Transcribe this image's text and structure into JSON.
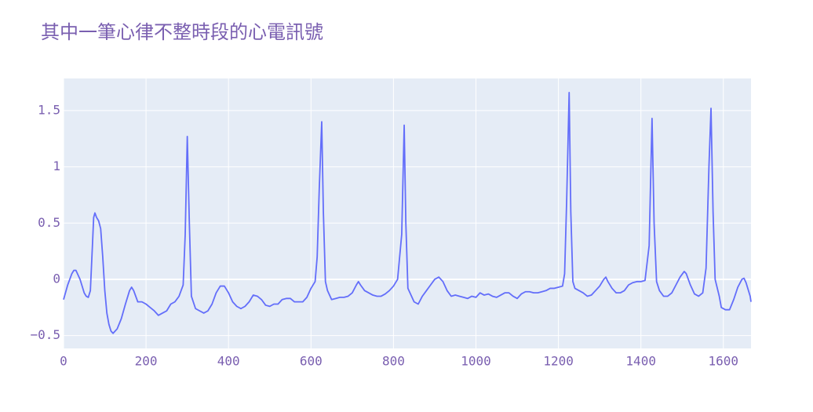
{
  "chart_data": {
    "type": "line",
    "title": "其中一筆心律不整時段的心電訊號",
    "x": [
      0,
      10,
      20,
      25,
      30,
      40,
      50,
      55,
      60,
      65,
      70,
      73,
      76,
      80,
      85,
      90,
      95,
      100,
      105,
      110,
      115,
      120,
      130,
      140,
      150,
      160,
      165,
      170,
      180,
      190,
      200,
      210,
      220,
      230,
      240,
      250,
      260,
      270,
      280,
      290,
      295,
      300,
      305,
      310,
      320,
      330,
      340,
      350,
      360,
      370,
      380,
      390,
      400,
      410,
      420,
      430,
      440,
      450,
      460,
      470,
      480,
      490,
      500,
      510,
      520,
      530,
      540,
      550,
      560,
      570,
      580,
      590,
      600,
      610,
      615,
      620,
      626,
      630,
      635,
      640,
      650,
      660,
      670,
      680,
      690,
      700,
      710,
      715,
      720,
      730,
      740,
      750,
      760,
      770,
      780,
      790,
      800,
      810,
      820,
      826,
      830,
      835,
      840,
      850,
      860,
      870,
      880,
      890,
      900,
      910,
      920,
      930,
      940,
      950,
      960,
      970,
      980,
      990,
      1000,
      1010,
      1020,
      1030,
      1040,
      1050,
      1060,
      1070,
      1080,
      1090,
      1100,
      1110,
      1120,
      1130,
      1140,
      1150,
      1160,
      1170,
      1180,
      1190,
      1200,
      1210,
      1215,
      1220,
      1226,
      1230,
      1235,
      1240,
      1250,
      1260,
      1270,
      1280,
      1290,
      1300,
      1310,
      1315,
      1320,
      1330,
      1340,
      1350,
      1360,
      1370,
      1380,
      1390,
      1400,
      1410,
      1420,
      1427,
      1432,
      1438,
      1445,
      1455,
      1465,
      1475,
      1485,
      1495,
      1505,
      1510,
      1520,
      1530,
      1540,
      1550,
      1558,
      1565,
      1570,
      1575,
      1580,
      1590,
      1595,
      1605,
      1615,
      1625,
      1635,
      1645,
      1650,
      1655,
      1665,
      1667
    ],
    "series": [
      {
        "color": "#636efa",
        "values": [
          -0.18,
          -0.05,
          0.05,
          0.08,
          0.08,
          0.0,
          -0.12,
          -0.15,
          -0.16,
          -0.1,
          0.3,
          0.55,
          0.59,
          0.55,
          0.52,
          0.45,
          0.2,
          -0.1,
          -0.3,
          -0.4,
          -0.46,
          -0.48,
          -0.44,
          -0.35,
          -0.22,
          -0.1,
          -0.07,
          -0.1,
          -0.2,
          -0.2,
          -0.22,
          -0.25,
          -0.28,
          -0.32,
          -0.3,
          -0.28,
          -0.22,
          -0.2,
          -0.15,
          -0.05,
          0.4,
          1.27,
          0.5,
          -0.15,
          -0.26,
          -0.28,
          -0.3,
          -0.28,
          -0.22,
          -0.12,
          -0.06,
          -0.06,
          -0.12,
          -0.2,
          -0.24,
          -0.26,
          -0.24,
          -0.2,
          -0.14,
          -0.15,
          -0.18,
          -0.23,
          -0.24,
          -0.22,
          -0.22,
          -0.18,
          -0.17,
          -0.17,
          -0.2,
          -0.2,
          -0.2,
          -0.16,
          -0.08,
          -0.02,
          0.2,
          0.8,
          1.4,
          0.6,
          -0.02,
          -0.1,
          -0.18,
          -0.17,
          -0.16,
          -0.16,
          -0.15,
          -0.12,
          -0.05,
          -0.02,
          -0.05,
          -0.1,
          -0.12,
          -0.14,
          -0.15,
          -0.15,
          -0.13,
          -0.1,
          -0.06,
          0.0,
          0.4,
          1.37,
          0.5,
          -0.08,
          -0.12,
          -0.2,
          -0.22,
          -0.15,
          -0.1,
          -0.05,
          0.0,
          0.02,
          -0.02,
          -0.1,
          -0.15,
          -0.14,
          -0.15,
          -0.16,
          -0.17,
          -0.15,
          -0.16,
          -0.12,
          -0.14,
          -0.13,
          -0.15,
          -0.16,
          -0.14,
          -0.12,
          -0.12,
          -0.15,
          -0.17,
          -0.13,
          -0.11,
          -0.11,
          -0.12,
          -0.12,
          -0.11,
          -0.1,
          -0.08,
          -0.08,
          -0.07,
          -0.06,
          0.05,
          0.7,
          1.66,
          0.6,
          -0.02,
          -0.08,
          -0.1,
          -0.12,
          -0.15,
          -0.14,
          -0.1,
          -0.06,
          0.0,
          0.02,
          -0.02,
          -0.08,
          -0.12,
          -0.12,
          -0.1,
          -0.05,
          -0.03,
          -0.02,
          -0.02,
          -0.01,
          0.3,
          1.43,
          0.5,
          -0.02,
          -0.1,
          -0.15,
          -0.15,
          -0.12,
          -0.05,
          0.02,
          0.07,
          0.05,
          -0.05,
          -0.13,
          -0.15,
          -0.12,
          0.1,
          1.0,
          1.52,
          0.6,
          0.0,
          -0.15,
          -0.25,
          -0.27,
          -0.27,
          -0.18,
          -0.07,
          0.0,
          0.01,
          -0.03,
          -0.15,
          -0.2
        ]
      }
    ],
    "xlim": [
      0,
      1667
    ],
    "xticks": [
      0,
      200,
      400,
      600,
      800,
      1000,
      1200,
      1400,
      1600
    ],
    "ylim": [
      -0.614,
      1.785
    ],
    "yticks": [
      {
        "value": -0.5,
        "label": "−0.5"
      },
      0,
      0.5,
      1,
      1.5
    ],
    "grid": true
  }
}
